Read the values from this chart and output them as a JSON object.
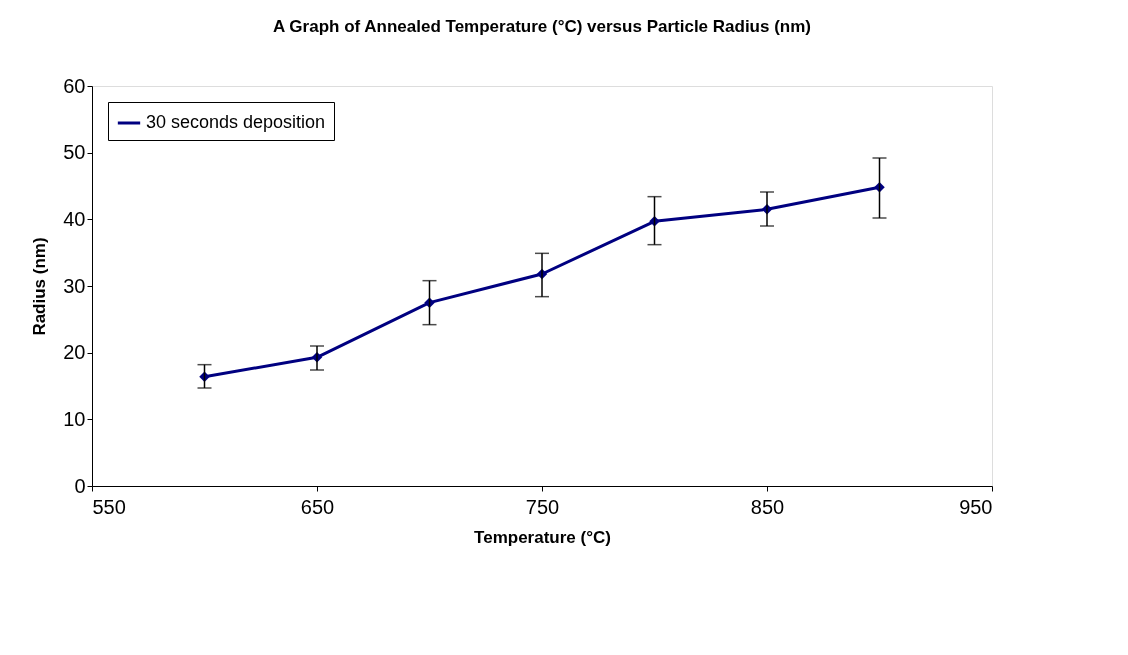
{
  "chart_data": {
    "type": "line",
    "title": "A Graph of Annealed Temperature (°C) versus Particle Radius (nm)",
    "xlabel": "Temperature (°C)",
    "ylabel": "Radius (nm)",
    "x": [
      600,
      650,
      700,
      750,
      800,
      850,
      900
    ],
    "series": [
      {
        "name": "30 seconds deposition",
        "color": "#000080",
        "values": [
          16.4,
          19.3,
          27.5,
          31.8,
          39.7,
          41.5,
          44.8
        ],
        "errors": [
          [
            14.7,
            18.2
          ],
          [
            17.4,
            21.0
          ],
          [
            24.2,
            30.8
          ],
          [
            28.4,
            34.9
          ],
          [
            36.2,
            43.4
          ],
          [
            39.0,
            44.1
          ],
          [
            40.2,
            49.2
          ]
        ]
      }
    ],
    "xlim": [
      550,
      950
    ],
    "xticks": [
      550,
      650,
      750,
      850,
      950
    ],
    "ylim": [
      0,
      60
    ],
    "yticks": [
      0,
      10,
      20,
      30,
      40,
      50,
      60
    ],
    "grid": false,
    "legend": "top left",
    "marker": "diamond",
    "line_style": "solid"
  }
}
